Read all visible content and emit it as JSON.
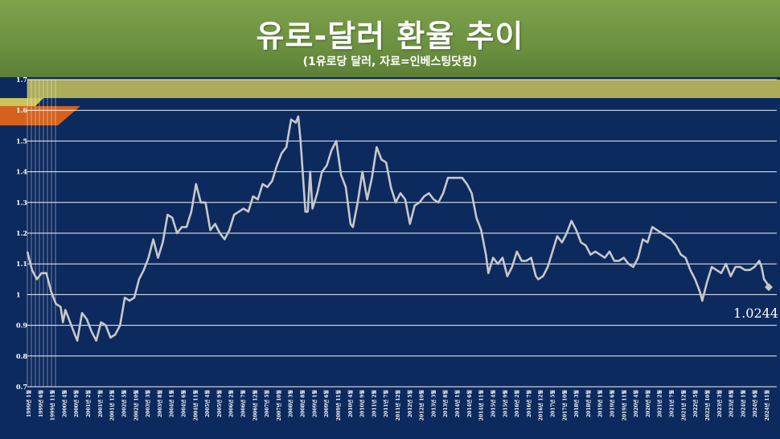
{
  "title": "유로-달러 환율 추이",
  "subtitle": "(1유로당 달러, 자료=인베스팅닷컴)",
  "last_value_label": "1.0244",
  "colors": {
    "plot_bg": "#0d2a5e",
    "line": "#c8c8c8",
    "grid": "#ffffff",
    "banner": "#6b9140",
    "accent_olive": "#c9c35a",
    "accent_orange": "#d4621c"
  },
  "chart_data": {
    "type": "line",
    "title": "유로-달러 환율 추이",
    "ylim": [
      0.7,
      1.7
    ],
    "y_ticks": [
      "0.7",
      "0.8",
      "0.9",
      "1",
      "1.1",
      "1.2",
      "1.3",
      "1.4",
      "1.5",
      "1.6",
      "1.7"
    ],
    "grid": true,
    "x_tick_labels": [
      "1999년 1월",
      "1999년 6월",
      "1999년 11월",
      "2000년 4월",
      "2000년 9월",
      "2001년 2월",
      "2001년 7월",
      "2001년 12월",
      "2002년 5월",
      "2002년 10월",
      "2003년 3월",
      "2003년 8월",
      "2004년 1월",
      "2004년 6월",
      "2004년 11월",
      "2005년 4월",
      "2005년 9월",
      "2006년 2월",
      "2006년 7월",
      "2006년 12월",
      "2007년 5월",
      "2007년 10월",
      "2008년 3월",
      "2008년 8월",
      "2009년 1월",
      "2009년 6월",
      "2009년 11월",
      "2010년 4월",
      "2010년 9월",
      "2011년 2월",
      "2011년 7월",
      "2011년 12월",
      "2012년 5월",
      "2012년 10월",
      "2013년 3월",
      "2013년 8월",
      "2014년 1월",
      "2014년 6월",
      "2014년 11월",
      "2015년 4월",
      "2015년 9월",
      "2016년 2월",
      "2016년 7월",
      "2016년 12월",
      "2017년 5월",
      "2017년 10월",
      "2018년 3월",
      "2018년 8월",
      "2019년 1월",
      "2019년 6월",
      "2019년 11월",
      "2020년 4월",
      "2020년 9월",
      "2021년 2월",
      "2021년 7월",
      "2021년 12월",
      "2022년 5월",
      "2022년 10월",
      "2023년 3월",
      "2023년 8월",
      "2024년 1월",
      "2024년 6월",
      "2024년 11월"
    ],
    "series": [
      {
        "name": "",
        "points": [
          [
            "1999-01",
            1.14
          ],
          [
            "1999-03",
            1.08
          ],
          [
            "1999-05",
            1.05
          ],
          [
            "1999-07",
            1.07
          ],
          [
            "1999-09",
            1.07
          ],
          [
            "1999-11",
            1.01
          ],
          [
            "2000-01",
            0.97
          ],
          [
            "2000-03",
            0.96
          ],
          [
            "2000-04",
            0.91
          ],
          [
            "2000-05",
            0.95
          ],
          [
            "2000-07",
            0.91
          ],
          [
            "2000-09",
            0.87
          ],
          [
            "2000-10",
            0.85
          ],
          [
            "2000-12",
            0.94
          ],
          [
            "2001-02",
            0.92
          ],
          [
            "2001-04",
            0.88
          ],
          [
            "2001-06",
            0.85
          ],
          [
            "2001-08",
            0.91
          ],
          [
            "2001-10",
            0.9
          ],
          [
            "2001-12",
            0.86
          ],
          [
            "2002-02",
            0.87
          ],
          [
            "2002-04",
            0.9
          ],
          [
            "2002-06",
            0.99
          ],
          [
            "2002-08",
            0.98
          ],
          [
            "2002-10",
            0.99
          ],
          [
            "2002-12",
            1.05
          ],
          [
            "2003-02",
            1.08
          ],
          [
            "2003-04",
            1.12
          ],
          [
            "2003-06",
            1.18
          ],
          [
            "2003-08",
            1.12
          ],
          [
            "2003-10",
            1.17
          ],
          [
            "2003-12",
            1.26
          ],
          [
            "2004-02",
            1.25
          ],
          [
            "2004-04",
            1.2
          ],
          [
            "2004-06",
            1.22
          ],
          [
            "2004-08",
            1.22
          ],
          [
            "2004-10",
            1.27
          ],
          [
            "2004-12",
            1.36
          ],
          [
            "2005-02",
            1.3
          ],
          [
            "2005-04",
            1.3
          ],
          [
            "2005-06",
            1.21
          ],
          [
            "2005-08",
            1.23
          ],
          [
            "2005-10",
            1.2
          ],
          [
            "2005-12",
            1.18
          ],
          [
            "2006-02",
            1.21
          ],
          [
            "2006-04",
            1.26
          ],
          [
            "2006-06",
            1.27
          ],
          [
            "2006-08",
            1.28
          ],
          [
            "2006-10",
            1.27
          ],
          [
            "2006-12",
            1.32
          ],
          [
            "2007-02",
            1.31
          ],
          [
            "2007-04",
            1.36
          ],
          [
            "2007-06",
            1.35
          ],
          [
            "2007-08",
            1.37
          ],
          [
            "2007-10",
            1.42
          ],
          [
            "2007-12",
            1.46
          ],
          [
            "2008-02",
            1.48
          ],
          [
            "2008-04",
            1.57
          ],
          [
            "2008-06",
            1.56
          ],
          [
            "2008-07",
            1.58
          ],
          [
            "2008-08",
            1.5
          ],
          [
            "2008-10",
            1.27
          ],
          [
            "2008-11",
            1.27
          ],
          [
            "2008-12",
            1.4
          ],
          [
            "2009-01",
            1.28
          ],
          [
            "2009-03",
            1.33
          ],
          [
            "2009-05",
            1.4
          ],
          [
            "2009-07",
            1.42
          ],
          [
            "2009-09",
            1.47
          ],
          [
            "2009-11",
            1.5
          ],
          [
            "2010-01",
            1.39
          ],
          [
            "2010-03",
            1.35
          ],
          [
            "2010-05",
            1.23
          ],
          [
            "2010-06",
            1.22
          ],
          [
            "2010-08",
            1.3
          ],
          [
            "2010-10",
            1.4
          ],
          [
            "2010-12",
            1.31
          ],
          [
            "2011-02",
            1.38
          ],
          [
            "2011-04",
            1.48
          ],
          [
            "2011-06",
            1.44
          ],
          [
            "2011-08",
            1.43
          ],
          [
            "2011-10",
            1.35
          ],
          [
            "2011-12",
            1.3
          ],
          [
            "2012-02",
            1.33
          ],
          [
            "2012-04",
            1.31
          ],
          [
            "2012-06",
            1.23
          ],
          [
            "2012-08",
            1.29
          ],
          [
            "2012-10",
            1.3
          ],
          [
            "2012-12",
            1.32
          ],
          [
            "2013-02",
            1.33
          ],
          [
            "2013-04",
            1.31
          ],
          [
            "2013-06",
            1.3
          ],
          [
            "2013-08",
            1.33
          ],
          [
            "2013-10",
            1.38
          ],
          [
            "2013-12",
            1.38
          ],
          [
            "2014-02",
            1.38
          ],
          [
            "2014-04",
            1.38
          ],
          [
            "2014-06",
            1.36
          ],
          [
            "2014-08",
            1.33
          ],
          [
            "2014-10",
            1.25
          ],
          [
            "2014-12",
            1.21
          ],
          [
            "2015-02",
            1.13
          ],
          [
            "2015-03",
            1.07
          ],
          [
            "2015-05",
            1.12
          ],
          [
            "2015-07",
            1.1
          ],
          [
            "2015-09",
            1.12
          ],
          [
            "2015-11",
            1.06
          ],
          [
            "2016-01",
            1.09
          ],
          [
            "2016-03",
            1.14
          ],
          [
            "2016-05",
            1.11
          ],
          [
            "2016-07",
            1.11
          ],
          [
            "2016-09",
            1.12
          ],
          [
            "2016-11",
            1.06
          ],
          [
            "2016-12",
            1.05
          ],
          [
            "2017-02",
            1.06
          ],
          [
            "2017-04",
            1.09
          ],
          [
            "2017-06",
            1.14
          ],
          [
            "2017-08",
            1.19
          ],
          [
            "2017-10",
            1.17
          ],
          [
            "2017-12",
            1.2
          ],
          [
            "2018-02",
            1.24
          ],
          [
            "2018-04",
            1.21
          ],
          [
            "2018-06",
            1.17
          ],
          [
            "2018-08",
            1.16
          ],
          [
            "2018-10",
            1.13
          ],
          [
            "2018-12",
            1.14
          ],
          [
            "2019-02",
            1.13
          ],
          [
            "2019-04",
            1.12
          ],
          [
            "2019-06",
            1.14
          ],
          [
            "2019-08",
            1.11
          ],
          [
            "2019-10",
            1.11
          ],
          [
            "2019-12",
            1.12
          ],
          [
            "2020-02",
            1.1
          ],
          [
            "2020-04",
            1.09
          ],
          [
            "2020-06",
            1.12
          ],
          [
            "2020-08",
            1.18
          ],
          [
            "2020-10",
            1.17
          ],
          [
            "2020-12",
            1.22
          ],
          [
            "2021-02",
            1.21
          ],
          [
            "2021-04",
            1.2
          ],
          [
            "2021-06",
            1.19
          ],
          [
            "2021-08",
            1.18
          ],
          [
            "2021-10",
            1.16
          ],
          [
            "2021-12",
            1.13
          ],
          [
            "2022-02",
            1.12
          ],
          [
            "2022-04",
            1.08
          ],
          [
            "2022-06",
            1.05
          ],
          [
            "2022-08",
            1.01
          ],
          [
            "2022-09",
            0.98
          ],
          [
            "2022-11",
            1.04
          ],
          [
            "2023-01",
            1.09
          ],
          [
            "2023-03",
            1.08
          ],
          [
            "2023-05",
            1.07
          ],
          [
            "2023-07",
            1.1
          ],
          [
            "2023-09",
            1.06
          ],
          [
            "2023-11",
            1.09
          ],
          [
            "2024-01",
            1.09
          ],
          [
            "2024-03",
            1.08
          ],
          [
            "2024-05",
            1.08
          ],
          [
            "2024-07",
            1.09
          ],
          [
            "2024-09",
            1.11
          ],
          [
            "2024-10",
            1.09
          ],
          [
            "2024-11",
            1.05
          ],
          [
            "2024-12",
            1.04
          ],
          [
            "2025-01",
            1.0244
          ]
        ]
      }
    ]
  }
}
